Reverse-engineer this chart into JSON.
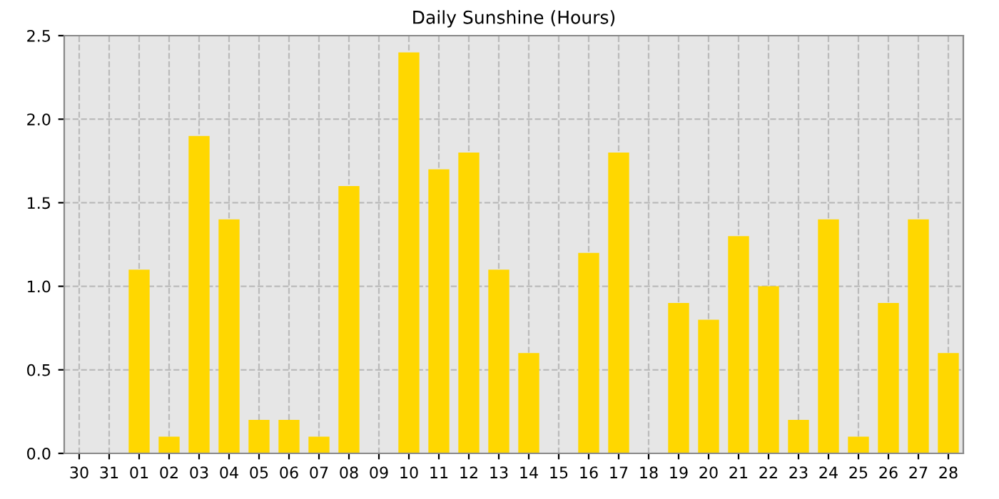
{
  "chart_data": {
    "type": "bar",
    "title": "Daily Sunshine (Hours)",
    "categories": [
      "30",
      "31",
      "01",
      "02",
      "03",
      "04",
      "05",
      "06",
      "07",
      "08",
      "09",
      "10",
      "11",
      "12",
      "13",
      "14",
      "15",
      "16",
      "17",
      "18",
      "19",
      "20",
      "21",
      "22",
      "23",
      "24",
      "25",
      "26",
      "27",
      "28"
    ],
    "values": [
      0,
      0,
      1.1,
      0.1,
      1.9,
      1.4,
      0.2,
      0.2,
      0.1,
      1.6,
      0,
      2.4,
      1.7,
      1.8,
      1.1,
      0.6,
      0,
      1.2,
      1.8,
      0,
      0.9,
      0.8,
      1.3,
      1.0,
      0.2,
      1.4,
      0.1,
      0.9,
      1.4,
      0.6
    ],
    "color": "#ffd700",
    "ylim": [
      0,
      2.5
    ],
    "yticks": [
      {
        "value": 0,
        "label": "0.0"
      },
      {
        "value": 0.5,
        "label": "0.5"
      },
      {
        "value": 1,
        "label": "1.0"
      },
      {
        "value": 1.5,
        "label": "1.5"
      },
      {
        "value": 2,
        "label": "2.0"
      },
      {
        "value": 2.5,
        "label": "2.5"
      }
    ],
    "grid": true
  }
}
